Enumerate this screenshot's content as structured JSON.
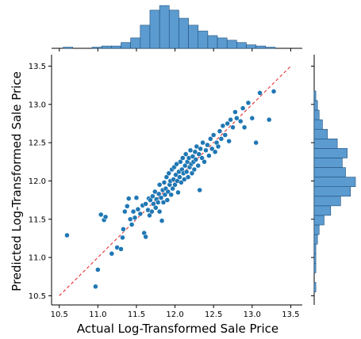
{
  "chart_data": {
    "type": "scatter",
    "title": "",
    "xlabel": "Actual Log-Transformed Sale Price",
    "ylabel": "Predicted Log-Transformed Sale Price",
    "xlim": [
      10.4,
      13.65
    ],
    "ylim": [
      10.38,
      13.65
    ],
    "xticks": [
      "10.5",
      "11.0",
      "11.5",
      "12.0",
      "12.5",
      "13.0",
      "13.5"
    ],
    "yticks": [
      "10.5",
      "11.0",
      "11.5",
      "12.0",
      "12.5",
      "13.0",
      "13.5"
    ],
    "grid": false,
    "reference_line": {
      "from": [
        10.5,
        10.5
      ],
      "to": [
        13.5,
        13.5
      ],
      "style": "dashed",
      "color": "#e31a1c"
    },
    "point_color": "#1f77b4",
    "hist_color": "#5b9bd0",
    "points": [
      [
        10.6,
        11.29
      ],
      [
        10.97,
        10.62
      ],
      [
        11.0,
        10.84
      ],
      [
        11.04,
        11.56
      ],
      [
        11.08,
        11.49
      ],
      [
        11.1,
        11.53
      ],
      [
        11.18,
        11.05
      ],
      [
        11.25,
        11.13
      ],
      [
        11.3,
        11.11
      ],
      [
        11.32,
        11.26
      ],
      [
        11.33,
        11.37
      ],
      [
        11.35,
        11.6
      ],
      [
        11.38,
        11.67
      ],
      [
        11.4,
        11.77
      ],
      [
        11.42,
        11.5
      ],
      [
        11.44,
        11.43
      ],
      [
        11.46,
        11.6
      ],
      [
        11.48,
        11.52
      ],
      [
        11.5,
        11.78
      ],
      [
        11.52,
        11.63
      ],
      [
        11.55,
        11.57
      ],
      [
        11.58,
        11.68
      ],
      [
        11.6,
        11.32
      ],
      [
        11.62,
        11.27
      ],
      [
        11.62,
        11.7
      ],
      [
        11.65,
        11.62
      ],
      [
        11.66,
        11.77
      ],
      [
        11.67,
        11.55
      ],
      [
        11.68,
        11.75
      ],
      [
        11.7,
        11.6
      ],
      [
        11.71,
        11.8
      ],
      [
        11.72,
        11.7
      ],
      [
        11.74,
        11.86
      ],
      [
        11.75,
        11.65
      ],
      [
        11.76,
        11.76
      ],
      [
        11.78,
        11.72
      ],
      [
        11.79,
        11.83
      ],
      [
        11.8,
        11.6
      ],
      [
        11.8,
        11.95
      ],
      [
        11.82,
        11.78
      ],
      [
        11.83,
        11.48
      ],
      [
        11.84,
        11.88
      ],
      [
        11.85,
        11.72
      ],
      [
        11.86,
        11.98
      ],
      [
        11.87,
        11.82
      ],
      [
        11.88,
        11.9
      ],
      [
        11.89,
        12.05
      ],
      [
        11.9,
        11.75
      ],
      [
        11.91,
        11.86
      ],
      [
        11.92,
        12.1
      ],
      [
        11.93,
        11.95
      ],
      [
        11.94,
        12.0
      ],
      [
        11.95,
        11.82
      ],
      [
        11.96,
        12.15
      ],
      [
        11.97,
        11.9
      ],
      [
        11.98,
        12.02
      ],
      [
        11.99,
        12.18
      ],
      [
        12.0,
        11.95
      ],
      [
        12.01,
        12.08
      ],
      [
        12.02,
        12.22
      ],
      [
        12.03,
        12.0
      ],
      [
        12.04,
        11.85
      ],
      [
        12.05,
        12.12
      ],
      [
        12.06,
        12.05
      ],
      [
        12.07,
        12.25
      ],
      [
        12.08,
        11.98
      ],
      [
        12.09,
        12.15
      ],
      [
        12.1,
        12.3
      ],
      [
        12.11,
        12.1
      ],
      [
        12.12,
        12.02
      ],
      [
        12.13,
        12.2
      ],
      [
        12.14,
        12.35
      ],
      [
        12.15,
        12.12
      ],
      [
        12.16,
        12.25
      ],
      [
        12.17,
        12.05
      ],
      [
        12.18,
        12.3
      ],
      [
        12.19,
        12.18
      ],
      [
        12.2,
        12.4
      ],
      [
        12.21,
        12.22
      ],
      [
        12.22,
        12.1
      ],
      [
        12.23,
        12.32
      ],
      [
        12.24,
        12.25
      ],
      [
        12.25,
        12.15
      ],
      [
        12.26,
        12.38
      ],
      [
        12.27,
        12.28
      ],
      [
        12.28,
        12.45
      ],
      [
        12.3,
        12.2
      ],
      [
        12.31,
        12.35
      ],
      [
        12.32,
        11.88
      ],
      [
        12.33,
        12.42
      ],
      [
        12.35,
        12.3
      ],
      [
        12.36,
        12.5
      ],
      [
        12.38,
        12.25
      ],
      [
        12.4,
        12.4
      ],
      [
        12.42,
        12.47
      ],
      [
        12.44,
        12.33
      ],
      [
        12.46,
        12.55
      ],
      [
        12.48,
        12.42
      ],
      [
        12.5,
        12.6
      ],
      [
        12.52,
        12.38
      ],
      [
        12.54,
        12.5
      ],
      [
        12.56,
        12.45
      ],
      [
        12.58,
        12.65
      ],
      [
        12.6,
        12.55
      ],
      [
        12.62,
        12.72
      ],
      [
        12.65,
        12.6
      ],
      [
        12.68,
        12.75
      ],
      [
        12.7,
        12.52
      ],
      [
        12.72,
        12.8
      ],
      [
        12.75,
        12.7
      ],
      [
        12.78,
        12.9
      ],
      [
        12.8,
        12.82
      ],
      [
        12.85,
        12.78
      ],
      [
        12.88,
        12.95
      ],
      [
        12.9,
        12.7
      ],
      [
        12.95,
        13.02
      ],
      [
        13.0,
        12.82
      ],
      [
        13.05,
        12.5
      ],
      [
        13.1,
        13.15
      ],
      [
        13.22,
        12.8
      ],
      [
        13.28,
        13.17
      ]
    ],
    "x_hist": {
      "bin_edges": [
        10.55,
        10.675,
        10.8,
        10.925,
        11.05,
        11.175,
        11.3,
        11.425,
        11.55,
        11.675,
        11.8,
        11.925,
        12.05,
        12.175,
        12.3,
        12.425,
        12.55,
        12.675,
        12.8,
        12.925,
        13.05,
        13.175,
        13.3
      ],
      "counts": [
        1,
        0,
        0,
        1,
        2,
        2,
        5,
        9,
        20,
        33,
        37,
        33,
        26,
        20,
        15,
        11,
        9,
        7,
        5,
        3,
        2,
        1
      ]
    },
    "y_hist": {
      "bin_edges": [
        10.55,
        10.675,
        10.8,
        10.925,
        11.05,
        11.175,
        11.3,
        11.425,
        11.55,
        11.675,
        11.8,
        11.925,
        12.05,
        12.175,
        12.3,
        12.425,
        12.55,
        12.675,
        12.8,
        12.925,
        13.05,
        13.175,
        13.3
      ],
      "counts": [
        1,
        0,
        1,
        1,
        1,
        2,
        3,
        6,
        10,
        16,
        22,
        25,
        19,
        17,
        20,
        14,
        8,
        5,
        3,
        2,
        1,
        0
      ]
    }
  }
}
